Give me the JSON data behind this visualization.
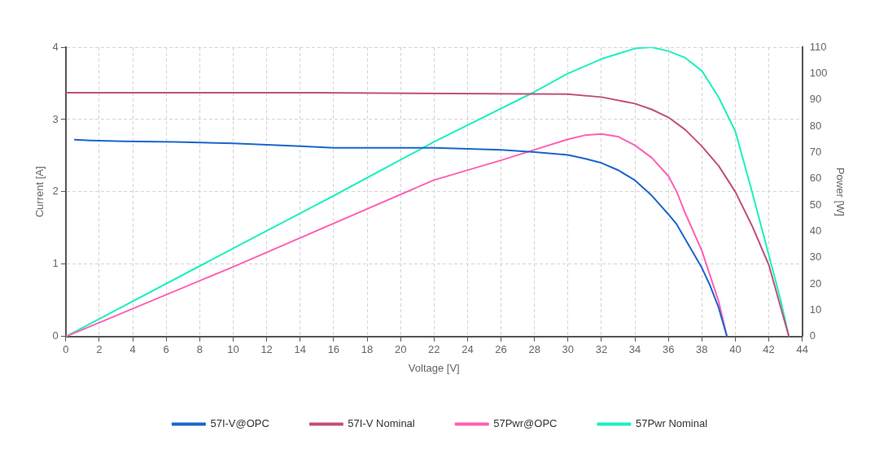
{
  "chart_data": {
    "type": "line",
    "xlabel": "Voltage [V]",
    "ylabel": "Current [A]",
    "y2label": "Power [W]",
    "xlim": [
      0,
      44
    ],
    "xticks": [
      0,
      2,
      4,
      6,
      8,
      10,
      12,
      14,
      16,
      18,
      20,
      22,
      24,
      26,
      28,
      30,
      32,
      34,
      36,
      38,
      40,
      42,
      44
    ],
    "ylim": [
      0,
      4
    ],
    "yticks": [
      0,
      1,
      2,
      3,
      4
    ],
    "y2lim": [
      0,
      110
    ],
    "y2ticks": [
      0,
      10,
      20,
      30,
      40,
      50,
      60,
      70,
      80,
      90,
      100,
      110
    ],
    "grid": true,
    "legend": "bottom",
    "marker": "none",
    "line_style": "solid",
    "series": [
      {
        "name": "57I-V@OPC",
        "color": "#1a66cc",
        "x": [
          0.5,
          1.5,
          3.5,
          6.5,
          10,
          12,
          14,
          16,
          22,
          26,
          28,
          30,
          31,
          32,
          33,
          34,
          35,
          36,
          36.5,
          37,
          38,
          38.5,
          39,
          39.5
        ],
        "values": [
          2.72,
          2.71,
          2.7,
          2.69,
          2.67,
          2.65,
          2.63,
          2.61,
          2.61,
          2.58,
          2.55,
          2.51,
          2.46,
          2.4,
          2.3,
          2.16,
          1.95,
          1.69,
          1.55,
          1.35,
          0.95,
          0.7,
          0.4,
          0
        ]
      },
      {
        "name": "57I-V Nominal",
        "color": "#c0507a",
        "x": [
          0,
          15,
          30,
          32,
          34,
          35,
          36,
          37,
          38,
          39,
          40,
          41,
          42,
          43.2
        ],
        "values": [
          3.37,
          3.37,
          3.35,
          3.31,
          3.22,
          3.14,
          3.03,
          2.86,
          2.63,
          2.36,
          2.0,
          1.53,
          0.99,
          0
        ]
      },
      {
        "name": "57Pwr@OPC",
        "color": "#ff5fb4",
        "axis": "y2",
        "x": [
          0,
          10,
          22,
          26,
          28,
          30,
          31,
          32,
          33,
          34,
          35,
          36,
          36.5,
          37,
          38,
          38.5,
          39,
          39.5
        ],
        "values": [
          0,
          26.5,
          59.5,
          67,
          71,
          75,
          76.5,
          77,
          76,
          72.7,
          68,
          61,
          55,
          47,
          32.6,
          23,
          13.4,
          0
        ]
      },
      {
        "name": "57Pwr Nominal",
        "color": "#1cf0c0",
        "axis": "y2",
        "x": [
          0,
          10,
          16,
          22,
          28,
          30,
          32,
          34,
          35,
          36,
          37,
          38,
          39,
          40,
          41,
          42,
          42.7,
          43.2
        ],
        "values": [
          0,
          33.5,
          53.5,
          74,
          93,
          100,
          105.5,
          109.5,
          110,
          108.5,
          106,
          101,
          91,
          78,
          55,
          31,
          14,
          0
        ]
      }
    ]
  }
}
